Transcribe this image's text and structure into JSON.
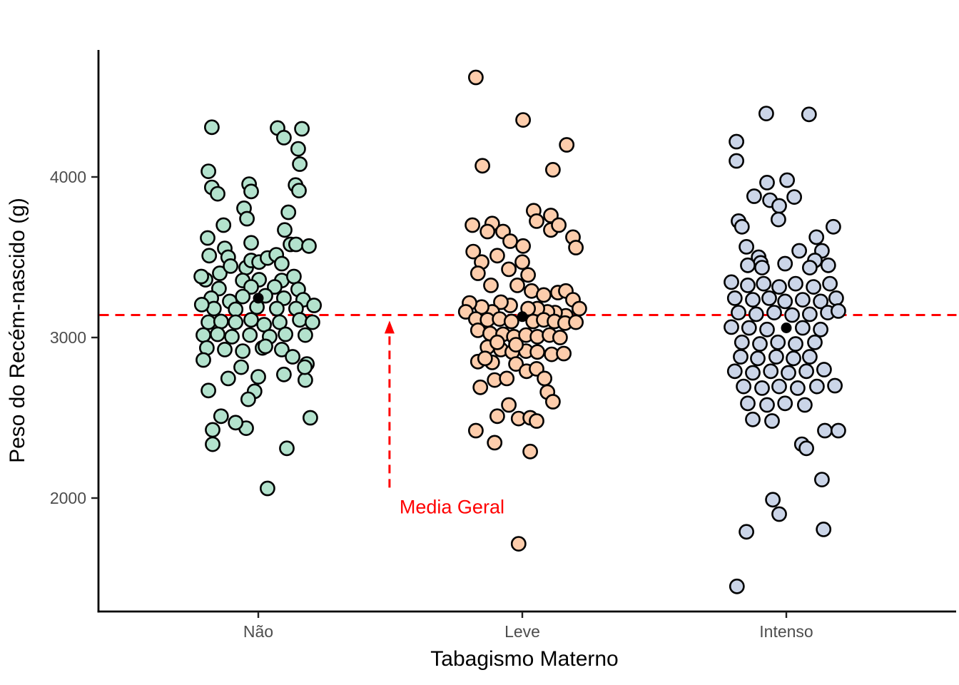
{
  "chart_data": {
    "type": "scatter",
    "subtype": "jitter-strip-plot",
    "title": "",
    "xlabel": "Tabagismo Materno",
    "ylabel": "Peso do Recém-nascido (g)",
    "categories": [
      "Não",
      "Leve",
      "Intenso"
    ],
    "y_ticks": [
      2000,
      3000,
      4000
    ],
    "y_tick_labels": [
      "2000",
      "3000",
      "4000"
    ],
    "ylim": [
      1260,
      4800
    ],
    "grid": false,
    "legend_position": "none",
    "point_outline_color": "#000000",
    "mean_marker_color": "#000000",
    "groups": [
      {
        "name": "Não",
        "fill": "#B3E2CD",
        "mean": 3245,
        "points": [
          [
            0.824,
            4310
          ],
          [
            1.073,
            4305
          ],
          [
            1.165,
            4300
          ],
          [
            1.097,
            4245
          ],
          [
            1.151,
            4175
          ],
          [
            1.157,
            4080
          ],
          [
            0.811,
            4035
          ],
          [
            0.824,
            3935
          ],
          [
            0.846,
            3895
          ],
          [
            0.965,
            3955
          ],
          [
            0.973,
            3910
          ],
          [
            0.946,
            3805
          ],
          [
            1.141,
            3950
          ],
          [
            1.154,
            3915
          ],
          [
            0.957,
            3740
          ],
          [
            1.114,
            3780
          ],
          [
            0.868,
            3700
          ],
          [
            0.808,
            3620
          ],
          [
            1.1,
            3670
          ],
          [
            0.873,
            3555
          ],
          [
            0.886,
            3500
          ],
          [
            0.814,
            3510
          ],
          [
            0.8,
            3360
          ],
          [
            0.854,
            3400
          ],
          [
            0.895,
            3445
          ],
          [
            0.954,
            3435
          ],
          [
            0.973,
            3480
          ],
          [
            1.003,
            3470
          ],
          [
            1.035,
            3495
          ],
          [
            1.068,
            3515
          ],
          [
            1.089,
            3460
          ],
          [
            1.122,
            3580
          ],
          [
            1.143,
            3580
          ],
          [
            1.192,
            3570
          ],
          [
            0.973,
            3590
          ],
          [
            0.941,
            3355
          ],
          [
            1.003,
            3360
          ],
          [
            1.089,
            3355
          ],
          [
            1.135,
            3380
          ],
          [
            0.784,
            3380
          ],
          [
            0.851,
            3305
          ],
          [
            0.973,
            3315
          ],
          [
            1.062,
            3315
          ],
          [
            1.151,
            3300
          ],
          [
            0.822,
            3245
          ],
          [
            0.892,
            3225
          ],
          [
            0.941,
            3255
          ],
          [
            1.027,
            3260
          ],
          [
            1.097,
            3245
          ],
          [
            1.17,
            3235
          ],
          [
            0.832,
            3180
          ],
          [
            0.914,
            3175
          ],
          [
            0.995,
            3190
          ],
          [
            1.07,
            3180
          ],
          [
            1.143,
            3180
          ],
          [
            0.786,
            3205
          ],
          [
            1.211,
            3200
          ],
          [
            0.811,
            3095
          ],
          [
            0.859,
            3100
          ],
          [
            0.914,
            3095
          ],
          [
            0.973,
            3110
          ],
          [
            1.022,
            3080
          ],
          [
            1.081,
            3095
          ],
          [
            1.157,
            3110
          ],
          [
            1.205,
            3095
          ],
          [
            0.792,
            3015
          ],
          [
            0.846,
            3020
          ],
          [
            0.9,
            3005
          ],
          [
            0.968,
            3015
          ],
          [
            1.043,
            3005
          ],
          [
            1.103,
            3020
          ],
          [
            1.178,
            3015
          ],
          [
            0.805,
            2935
          ],
          [
            0.873,
            2925
          ],
          [
            0.941,
            2915
          ],
          [
            1.016,
            2935
          ],
          [
            1.089,
            2925
          ],
          [
            1.027,
            2945
          ],
          [
            1.184,
            2835
          ],
          [
            1.097,
            2770
          ],
          [
            1.178,
            2735
          ],
          [
            0.886,
            2745
          ],
          [
            0.811,
            2670
          ],
          [
            0.986,
            2665
          ],
          [
            1.197,
            2500
          ],
          [
            0.827,
            2425
          ],
          [
            0.827,
            2335
          ],
          [
            1.108,
            2310
          ],
          [
            0.954,
            2435
          ],
          [
            0.914,
            2470
          ],
          [
            1.035,
            2060
          ],
          [
            0.859,
            2510
          ],
          [
            0.962,
            2615
          ],
          [
            1.176,
            2815
          ],
          [
            0.792,
            2860
          ],
          [
            1.13,
            2880
          ],
          [
            0.935,
            2815
          ],
          [
            1.0,
            2755
          ]
        ]
      },
      {
        "name": "Leve",
        "fill": "#FDCDAC",
        "mean": 3130,
        "points": [
          [
            1.824,
            4620
          ],
          [
            2.003,
            4355
          ],
          [
            2.168,
            4200
          ],
          [
            1.849,
            4070
          ],
          [
            2.116,
            4045
          ],
          [
            2.043,
            3790
          ],
          [
            2.108,
            3760
          ],
          [
            1.811,
            3700
          ],
          [
            1.886,
            3710
          ],
          [
            1.868,
            3660
          ],
          [
            1.927,
            3660
          ],
          [
            1.954,
            3600
          ],
          [
            2.003,
            3570
          ],
          [
            2.054,
            3725
          ],
          [
            2.108,
            3670
          ],
          [
            2.138,
            3700
          ],
          [
            2.192,
            3625
          ],
          [
            2.203,
            3560
          ],
          [
            1.814,
            3535
          ],
          [
            1.905,
            3510
          ],
          [
            1.846,
            3470
          ],
          [
            1.832,
            3400
          ],
          [
            1.881,
            3325
          ],
          [
            1.949,
            3425
          ],
          [
            2.0,
            3470
          ],
          [
            2.022,
            3390
          ],
          [
            1.981,
            3325
          ],
          [
            2.035,
            3290
          ],
          [
            2.081,
            3265
          ],
          [
            2.135,
            3280
          ],
          [
            2.165,
            3290
          ],
          [
            2.192,
            3235
          ],
          [
            2.216,
            3180
          ],
          [
            2.165,
            3135
          ],
          [
            2.124,
            3155
          ],
          [
            2.095,
            3160
          ],
          [
            2.057,
            3180
          ],
          [
            2.022,
            3180
          ],
          [
            1.954,
            3200
          ],
          [
            1.919,
            3220
          ],
          [
            1.886,
            3160
          ],
          [
            1.846,
            3190
          ],
          [
            1.8,
            3215
          ],
          [
            1.786,
            3160
          ],
          [
            1.824,
            3115
          ],
          [
            1.868,
            3110
          ],
          [
            1.914,
            3115
          ],
          [
            1.959,
            3100
          ],
          [
            2.041,
            3100
          ],
          [
            2.081,
            3110
          ],
          [
            2.122,
            3100
          ],
          [
            2.162,
            3090
          ],
          [
            2.203,
            3095
          ],
          [
            1.832,
            3045
          ],
          [
            1.878,
            3025
          ],
          [
            1.927,
            3020
          ],
          [
            1.968,
            3005
          ],
          [
            2.014,
            3015
          ],
          [
            2.057,
            3005
          ],
          [
            2.103,
            3015
          ],
          [
            2.143,
            3000
          ],
          [
            1.868,
            2940
          ],
          [
            1.919,
            2925
          ],
          [
            1.962,
            2910
          ],
          [
            2.014,
            2915
          ],
          [
            2.057,
            2910
          ],
          [
            2.111,
            2895
          ],
          [
            2.157,
            2900
          ],
          [
            1.832,
            2850
          ],
          [
            1.886,
            2845
          ],
          [
            1.905,
            2970
          ],
          [
            1.976,
            2955
          ],
          [
            1.859,
            2870
          ],
          [
            1.976,
            2835
          ],
          [
            2.016,
            2790
          ],
          [
            2.054,
            2805
          ],
          [
            2.084,
            2745
          ],
          [
            1.841,
            2690
          ],
          [
            1.895,
            2735
          ],
          [
            1.941,
            2745
          ],
          [
            2.095,
            2660
          ],
          [
            2.116,
            2600
          ],
          [
            1.949,
            2580
          ],
          [
            1.905,
            2510
          ],
          [
            1.986,
            2495
          ],
          [
            2.03,
            2500
          ],
          [
            2.054,
            2480
          ],
          [
            1.824,
            2420
          ],
          [
            1.895,
            2345
          ],
          [
            2.03,
            2290
          ],
          [
            1.986,
            1715
          ]
        ]
      },
      {
        "name": "Intenso",
        "fill": "#CBD5E8",
        "mean": 3060,
        "points": [
          [
            2.924,
            4395
          ],
          [
            3.086,
            4390
          ],
          [
            2.811,
            4220
          ],
          [
            2.811,
            4100
          ],
          [
            2.927,
            3965
          ],
          [
            3.003,
            3980
          ],
          [
            2.878,
            3880
          ],
          [
            2.938,
            3855
          ],
          [
            2.973,
            3820
          ],
          [
            3.03,
            3875
          ],
          [
            2.97,
            3735
          ],
          [
            2.819,
            3725
          ],
          [
            2.832,
            3690
          ],
          [
            2.849,
            3565
          ],
          [
            2.895,
            3500
          ],
          [
            2.903,
            3465
          ],
          [
            2.908,
            3435
          ],
          [
            3.114,
            3625
          ],
          [
            3.135,
            3540
          ],
          [
            3.108,
            3480
          ],
          [
            3.159,
            3450
          ],
          [
            3.178,
            3690
          ],
          [
            2.854,
            3450
          ],
          [
            3.049,
            3540
          ],
          [
            2.995,
            3460
          ],
          [
            3.089,
            3435
          ],
          [
            2.792,
            3345
          ],
          [
            2.854,
            3325
          ],
          [
            2.914,
            3335
          ],
          [
            2.973,
            3315
          ],
          [
            3.035,
            3335
          ],
          [
            3.103,
            3315
          ],
          [
            3.165,
            3335
          ],
          [
            2.805,
            3245
          ],
          [
            2.873,
            3235
          ],
          [
            2.935,
            3245
          ],
          [
            2.995,
            3225
          ],
          [
            3.062,
            3235
          ],
          [
            3.13,
            3225
          ],
          [
            3.189,
            3245
          ],
          [
            2.819,
            3155
          ],
          [
            2.886,
            3145
          ],
          [
            2.954,
            3155
          ],
          [
            3.022,
            3140
          ],
          [
            3.089,
            3145
          ],
          [
            3.157,
            3155
          ],
          [
            3.197,
            3165
          ],
          [
            2.792,
            3065
          ],
          [
            2.859,
            3060
          ],
          [
            2.927,
            3050
          ],
          [
            3.062,
            3060
          ],
          [
            3.13,
            3050
          ],
          [
            2.832,
            2970
          ],
          [
            2.9,
            2960
          ],
          [
            2.968,
            2970
          ],
          [
            3.035,
            2960
          ],
          [
            3.108,
            2970
          ],
          [
            2.827,
            2880
          ],
          [
            2.892,
            2870
          ],
          [
            2.962,
            2880
          ],
          [
            3.027,
            2870
          ],
          [
            3.089,
            2880
          ],
          [
            2.805,
            2790
          ],
          [
            2.873,
            2780
          ],
          [
            2.941,
            2790
          ],
          [
            3.008,
            2780
          ],
          [
            3.076,
            2790
          ],
          [
            3.143,
            2800
          ],
          [
            2.838,
            2695
          ],
          [
            2.908,
            2685
          ],
          [
            2.973,
            2695
          ],
          [
            3.043,
            2685
          ],
          [
            3.116,
            2695
          ],
          [
            3.184,
            2700
          ],
          [
            2.854,
            2590
          ],
          [
            2.927,
            2580
          ],
          [
            2.995,
            2590
          ],
          [
            3.07,
            2580
          ],
          [
            2.873,
            2490
          ],
          [
            2.946,
            2480
          ],
          [
            3.146,
            2420
          ],
          [
            3.197,
            2420
          ],
          [
            3.059,
            2335
          ],
          [
            3.076,
            2310
          ],
          [
            3.135,
            2115
          ],
          [
            2.949,
            1990
          ],
          [
            2.973,
            1900
          ],
          [
            2.849,
            1790
          ],
          [
            3.141,
            1805
          ],
          [
            2.813,
            1450
          ]
        ]
      }
    ],
    "annotations": {
      "hline": {
        "value": 3140,
        "color": "#FF0000",
        "style": "dashed"
      },
      "arrow": {
        "x": 1.497,
        "y_from": 2065,
        "y_to": 3105,
        "color": "#FF0000",
        "style": "dashed"
      },
      "label": {
        "text": "Media Geral",
        "x": 1.535,
        "y": 1905,
        "color": "#FF0000"
      }
    }
  }
}
